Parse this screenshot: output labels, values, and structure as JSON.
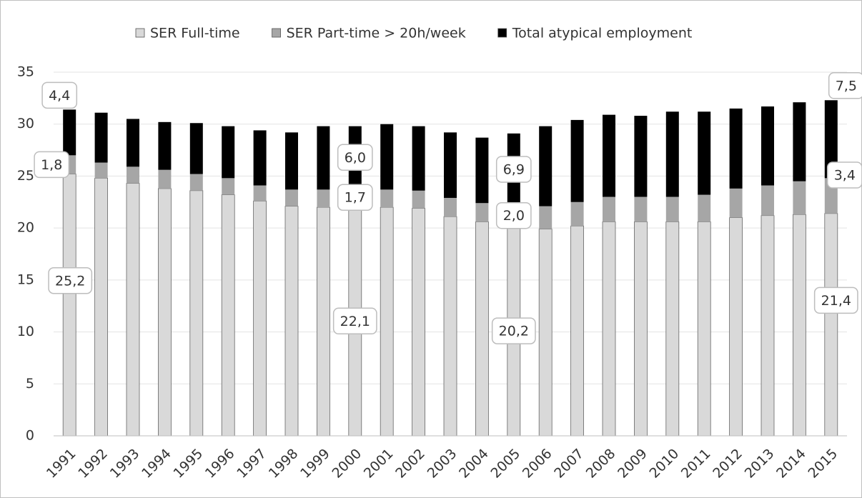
{
  "chart_data": {
    "type": "stacked_bar",
    "categories": [
      "1991",
      "1992",
      "1993",
      "1994",
      "1995",
      "1996",
      "1997",
      "1998",
      "1999",
      "2000",
      "2001",
      "2002",
      "2003",
      "2004",
      "2005",
      "2006",
      "2007",
      "2008",
      "2009",
      "2010",
      "2011",
      "2012",
      "2013",
      "2014",
      "2015"
    ],
    "series": [
      {
        "name": "SER Full-time",
        "color": "#d9d9d9",
        "values": [
          25.2,
          24.8,
          24.3,
          23.8,
          23.6,
          23.2,
          22.6,
          22.1,
          22.0,
          22.1,
          22.0,
          21.9,
          21.1,
          20.6,
          20.2,
          19.9,
          20.2,
          20.6,
          20.6,
          20.6,
          20.6,
          21.0,
          21.2,
          21.3,
          21.4
        ],
        "value_labels": [
          "25,2",
          null,
          null,
          null,
          null,
          null,
          null,
          null,
          null,
          "22,1",
          null,
          null,
          null,
          null,
          "20,2",
          null,
          null,
          null,
          null,
          null,
          null,
          null,
          null,
          null,
          "21,4"
        ]
      },
      {
        "name": "SER Part-time > 20h/week",
        "color": "#a6a6a6",
        "values": [
          1.8,
          1.5,
          1.6,
          1.8,
          1.6,
          1.6,
          1.5,
          1.6,
          1.7,
          1.7,
          1.7,
          1.7,
          1.8,
          1.8,
          2.0,
          2.2,
          2.3,
          2.4,
          2.4,
          2.4,
          2.6,
          2.8,
          2.9,
          3.2,
          3.4
        ],
        "value_labels": [
          "1,8",
          null,
          null,
          null,
          null,
          null,
          null,
          null,
          null,
          "1,7",
          null,
          null,
          null,
          null,
          "2,0",
          null,
          null,
          null,
          null,
          null,
          null,
          null,
          null,
          null,
          "3,4"
        ]
      },
      {
        "name": "Total atypical employment",
        "color": "#000000",
        "values": [
          4.4,
          4.8,
          4.6,
          4.6,
          4.9,
          5.0,
          5.3,
          5.5,
          6.1,
          6.0,
          6.3,
          6.2,
          6.3,
          6.3,
          6.9,
          7.7,
          7.9,
          7.9,
          7.8,
          8.2,
          8.0,
          7.7,
          7.6,
          7.6,
          7.5
        ],
        "value_labels": [
          "4,4",
          null,
          null,
          null,
          null,
          null,
          null,
          null,
          null,
          "6,0",
          null,
          null,
          null,
          null,
          "6,9",
          null,
          null,
          null,
          null,
          null,
          null,
          null,
          null,
          null,
          "7,5"
        ]
      }
    ],
    "ylim": [
      0,
      35
    ],
    "yticks": [
      0,
      5,
      10,
      15,
      20,
      25,
      30,
      35
    ],
    "grid": true,
    "legend": "top"
  }
}
